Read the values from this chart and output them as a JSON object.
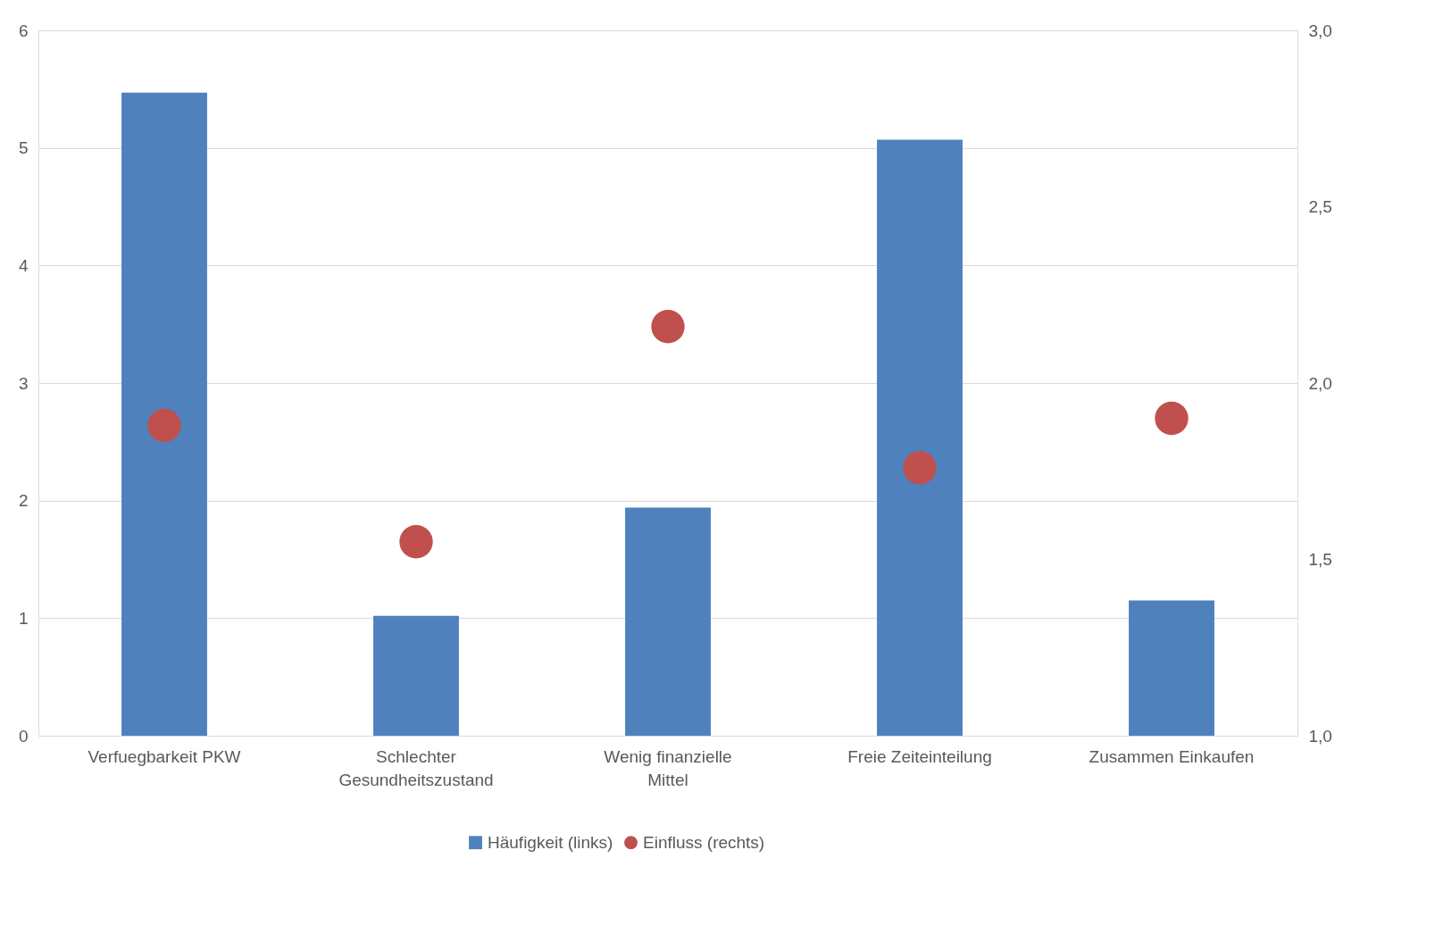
{
  "chart_data": {
    "type": "bar",
    "categories": [
      "Verfuegbarkeit PKW",
      "Schlechter Gesundheitszustand",
      "Wenig finanzielle Mittel",
      "Freie Zeiteinteilung",
      "Zusammen Einkaufen"
    ],
    "series": [
      {
        "name": "Häufigkeit (links)",
        "color": "#4f81bd",
        "values": [
          5.47,
          1.02,
          1.94,
          5.07,
          1.15
        ]
      },
      {
        "name": "Einfluss (rechts)",
        "type": "scatter",
        "axis": "y2",
        "color": "#c0504d",
        "marker": "circle",
        "values": [
          1.88,
          1.55,
          2.16,
          1.76,
          1.9
        ]
      }
    ],
    "ylim": [
      0,
      6
    ],
    "yticks": [
      0,
      1,
      2,
      3,
      4,
      5,
      6
    ],
    "y2lim": [
      1,
      3
    ],
    "y2ticks": [
      {
        "value": 1,
        "label": "1,0"
      },
      {
        "value": 1.5,
        "label": "1,5"
      },
      {
        "value": 2,
        "label": "2,0"
      },
      {
        "value": 2.5,
        "label": "2,5"
      },
      {
        "value": 3,
        "label": "3,0"
      }
    ],
    "grid": "y",
    "legend": "bottom"
  }
}
